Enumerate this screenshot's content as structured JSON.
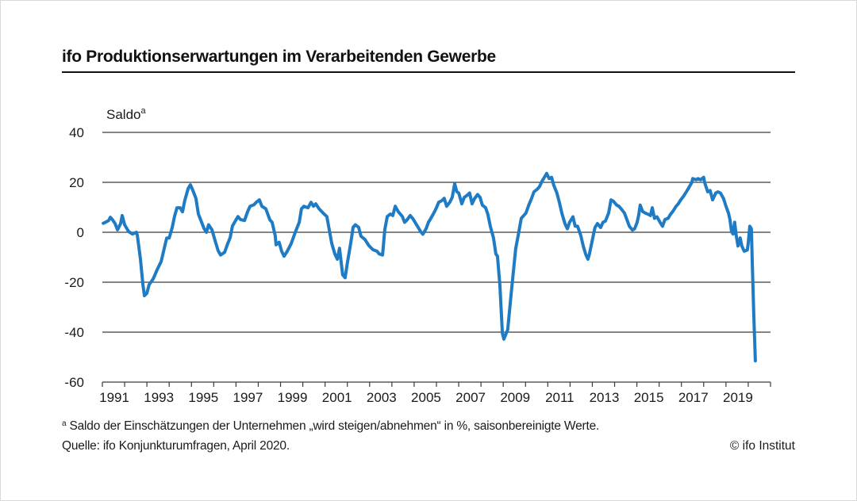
{
  "colors": {
    "line": "#1f7cc4",
    "grid": "#3a3a3a",
    "text": "#1a1a1a",
    "frame": "#d9d9d9"
  },
  "footnote": {
    "marker": "a",
    "text": "Saldo der Einschätzungen der Unternehmen „wird steigen/abnehmen“ in %, saisonbereinigte Werte."
  },
  "source": "Quelle: ifo Konjunkturumfragen, April 2020.",
  "copyright": "© ifo Institut",
  "chart_data": {
    "type": "line",
    "title": "ifo Produktionserwartungen im Verarbeitenden Gewerbe",
    "ylabel": "Saldo",
    "ylabel_superscript": "a",
    "xlabel": "",
    "ylim": [
      -60,
      40
    ],
    "xlim": [
      1991,
      2021
    ],
    "yticks": [
      40,
      20,
      0,
      -20,
      -40,
      -60
    ],
    "xticks": [
      "1991",
      "1993",
      "1995",
      "1997",
      "1999",
      "2001",
      "2003",
      "2005",
      "2007",
      "2009",
      "2011",
      "2013",
      "2015",
      "2017",
      "2019"
    ],
    "grid": "horizontal",
    "legend": "none",
    "series": [
      {
        "name": "ifo Produktionserwartungen (Saldo)",
        "points": [
          [
            1991.04,
            3.6
          ],
          [
            1991.14,
            4
          ],
          [
            1991.28,
            4.7
          ],
          [
            1991.36,
            6
          ],
          [
            1991.46,
            5
          ],
          [
            1991.57,
            3.5
          ],
          [
            1991.68,
            1
          ],
          [
            1991.82,
            3.5
          ],
          [
            1991.89,
            6.7
          ],
          [
            1992.0,
            3
          ],
          [
            1992.18,
            0.3
          ],
          [
            1992.35,
            -0.7
          ],
          [
            1992.53,
            0
          ],
          [
            1992.57,
            -1.3
          ],
          [
            1992.71,
            -10.8
          ],
          [
            1992.82,
            -21
          ],
          [
            1992.89,
            -25.4
          ],
          [
            1993.0,
            -24.4
          ],
          [
            1993.1,
            -21
          ],
          [
            1993.28,
            -18.7
          ],
          [
            1993.46,
            -15
          ],
          [
            1993.64,
            -11.7
          ],
          [
            1993.78,
            -6.4
          ],
          [
            1993.89,
            -2.3
          ],
          [
            1994.0,
            -2.3
          ],
          [
            1994.14,
            2
          ],
          [
            1994.24,
            6.3
          ],
          [
            1994.35,
            9.8
          ],
          [
            1994.49,
            9.8
          ],
          [
            1994.6,
            8.2
          ],
          [
            1994.7,
            12.7
          ],
          [
            1994.85,
            17.5
          ],
          [
            1994.95,
            19
          ],
          [
            1995.06,
            16.8
          ],
          [
            1995.2,
            13.6
          ],
          [
            1995.31,
            7.3
          ],
          [
            1995.42,
            4.8
          ],
          [
            1995.56,
            1.6
          ],
          [
            1995.67,
            0
          ],
          [
            1995.77,
            3
          ],
          [
            1995.92,
            1
          ],
          [
            1996.02,
            -2.1
          ],
          [
            1996.2,
            -7.4
          ],
          [
            1996.31,
            -9.1
          ],
          [
            1996.49,
            -8
          ],
          [
            1996.63,
            -4.5
          ],
          [
            1996.74,
            -2.1
          ],
          [
            1996.84,
            2.5
          ],
          [
            1996.99,
            4.8
          ],
          [
            1997.09,
            6.3
          ],
          [
            1997.2,
            5.1
          ],
          [
            1997.38,
            4.7
          ],
          [
            1997.52,
            8.2
          ],
          [
            1997.63,
            10.4
          ],
          [
            1997.8,
            11
          ],
          [
            1997.91,
            12
          ],
          [
            1998.05,
            13
          ],
          [
            1998.16,
            10.4
          ],
          [
            1998.34,
            9.4
          ],
          [
            1998.52,
            5
          ],
          [
            1998.62,
            4
          ],
          [
            1998.76,
            -1.3
          ],
          [
            1998.8,
            -5
          ],
          [
            1998.94,
            -4
          ],
          [
            1999.05,
            -7.6
          ],
          [
            1999.16,
            -9.6
          ],
          [
            1999.3,
            -7.6
          ],
          [
            1999.48,
            -4.5
          ],
          [
            1999.66,
            0
          ],
          [
            1999.84,
            4
          ],
          [
            1999.94,
            9.4
          ],
          [
            2000.05,
            10.4
          ],
          [
            2000.23,
            9.8
          ],
          [
            2000.37,
            12
          ],
          [
            2000.48,
            10.4
          ],
          [
            2000.58,
            11.4
          ],
          [
            2000.73,
            9.4
          ],
          [
            2000.9,
            7.8
          ],
          [
            2001.08,
            6.3
          ],
          [
            2001.19,
            0.9
          ],
          [
            2001.3,
            -4.5
          ],
          [
            2001.44,
            -8.7
          ],
          [
            2001.55,
            -10.8
          ],
          [
            2001.65,
            -6.4
          ],
          [
            2001.79,
            -17
          ],
          [
            2001.9,
            -18.2
          ],
          [
            2002.01,
            -11.8
          ],
          [
            2002.15,
            -4.5
          ],
          [
            2002.26,
            2
          ],
          [
            2002.36,
            3
          ],
          [
            2002.51,
            2
          ],
          [
            2002.61,
            -1.6
          ],
          [
            2002.79,
            -2.9
          ],
          [
            2002.97,
            -5.4
          ],
          [
            2003.15,
            -7
          ],
          [
            2003.33,
            -7.6
          ],
          [
            2003.43,
            -8.7
          ],
          [
            2003.58,
            -9.1
          ],
          [
            2003.68,
            1
          ],
          [
            2003.79,
            6.3
          ],
          [
            2003.93,
            7.3
          ],
          [
            2004.04,
            6.7
          ],
          [
            2004.15,
            10.4
          ],
          [
            2004.29,
            8.2
          ],
          [
            2004.47,
            6.3
          ],
          [
            2004.57,
            4
          ],
          [
            2004.68,
            5
          ],
          [
            2004.82,
            6.7
          ],
          [
            2004.93,
            5.6
          ],
          [
            2005.11,
            3
          ],
          [
            2005.29,
            0.3
          ],
          [
            2005.39,
            -0.8
          ],
          [
            2005.54,
            1.5
          ],
          [
            2005.64,
            4
          ],
          [
            2005.75,
            5.6
          ],
          [
            2005.89,
            7.8
          ],
          [
            2006.0,
            9.8
          ],
          [
            2006.1,
            12
          ],
          [
            2006.25,
            12.7
          ],
          [
            2006.35,
            13.6
          ],
          [
            2006.46,
            10.4
          ],
          [
            2006.6,
            12
          ],
          [
            2006.71,
            14
          ],
          [
            2006.82,
            19.4
          ],
          [
            2006.92,
            16.2
          ],
          [
            2007.0,
            15.7
          ],
          [
            2007.14,
            11.4
          ],
          [
            2007.25,
            14
          ],
          [
            2007.35,
            14.6
          ],
          [
            2007.49,
            15.7
          ],
          [
            2007.6,
            11.4
          ],
          [
            2007.71,
            13.5
          ],
          [
            2007.85,
            15.1
          ],
          [
            2007.96,
            14
          ],
          [
            2008.06,
            10.9
          ],
          [
            2008.21,
            9.8
          ],
          [
            2008.31,
            7.2
          ],
          [
            2008.42,
            2.4
          ],
          [
            2008.56,
            -2.3
          ],
          [
            2008.67,
            -8.7
          ],
          [
            2008.74,
            -9.6
          ],
          [
            2008.85,
            -21.3
          ],
          [
            2008.96,
            -40.4
          ],
          [
            2009.03,
            -42.8
          ],
          [
            2009.2,
            -39
          ],
          [
            2009.38,
            -22.3
          ],
          [
            2009.56,
            -6.5
          ],
          [
            2009.67,
            -1.3
          ],
          [
            2009.81,
            5.6
          ],
          [
            2009.92,
            6.7
          ],
          [
            2010.02,
            7.7
          ],
          [
            2010.17,
            11.4
          ],
          [
            2010.27,
            13.5
          ],
          [
            2010.38,
            16.2
          ],
          [
            2010.52,
            17.2
          ],
          [
            2010.63,
            18.3
          ],
          [
            2010.74,
            20.4
          ],
          [
            2010.88,
            22.5
          ],
          [
            2010.95,
            23.6
          ],
          [
            2011.06,
            21.5
          ],
          [
            2011.17,
            22
          ],
          [
            2011.27,
            18.8
          ],
          [
            2011.41,
            15.7
          ],
          [
            2011.52,
            12
          ],
          [
            2011.63,
            7.7
          ],
          [
            2011.77,
            3.5
          ],
          [
            2011.88,
            1.4
          ],
          [
            2011.98,
            4
          ],
          [
            2012.13,
            6.2
          ],
          [
            2012.23,
            2.4
          ],
          [
            2012.34,
            2.4
          ],
          [
            2012.48,
            -1.3
          ],
          [
            2012.59,
            -5.5
          ],
          [
            2012.7,
            -8.7
          ],
          [
            2012.8,
            -10.8
          ],
          [
            2012.87,
            -8.7
          ],
          [
            2013.02,
            -2.3
          ],
          [
            2013.12,
            1.9
          ],
          [
            2013.23,
            3.5
          ],
          [
            2013.37,
            1.9
          ],
          [
            2013.48,
            4
          ],
          [
            2013.59,
            4.5
          ],
          [
            2013.73,
            7.7
          ],
          [
            2013.84,
            13
          ],
          [
            2013.94,
            12.5
          ],
          [
            2014.09,
            10.9
          ],
          [
            2014.19,
            10.4
          ],
          [
            2014.3,
            9.3
          ],
          [
            2014.44,
            7.7
          ],
          [
            2014.55,
            5.1
          ],
          [
            2014.66,
            2.4
          ],
          [
            2014.8,
            0.9
          ],
          [
            2014.9,
            1.4
          ],
          [
            2015.01,
            4
          ],
          [
            2015.08,
            6.7
          ],
          [
            2015.15,
            10.9
          ],
          [
            2015.26,
            8.3
          ],
          [
            2015.37,
            7.7
          ],
          [
            2015.51,
            7.2
          ],
          [
            2015.61,
            6.7
          ],
          [
            2015.69,
            9.8
          ],
          [
            2015.79,
            5.6
          ],
          [
            2015.9,
            6.2
          ],
          [
            2016.04,
            4
          ],
          [
            2016.15,
            2.4
          ],
          [
            2016.26,
            5.1
          ],
          [
            2016.4,
            5.6
          ],
          [
            2016.51,
            7.2
          ],
          [
            2016.61,
            8.3
          ],
          [
            2016.76,
            10.4
          ],
          [
            2016.86,
            11.4
          ],
          [
            2016.97,
            13
          ],
          [
            2017.11,
            14.6
          ],
          [
            2017.22,
            16.2
          ],
          [
            2017.33,
            17.8
          ],
          [
            2017.47,
            20
          ],
          [
            2017.51,
            21.5
          ],
          [
            2017.65,
            21
          ],
          [
            2017.75,
            21.5
          ],
          [
            2017.86,
            21
          ],
          [
            2018.0,
            22
          ],
          [
            2018.04,
            20
          ],
          [
            2018.18,
            16.2
          ],
          [
            2018.29,
            16.7
          ],
          [
            2018.4,
            13
          ],
          [
            2018.54,
            15.7
          ],
          [
            2018.64,
            16.2
          ],
          [
            2018.75,
            15.7
          ],
          [
            2018.89,
            13.5
          ],
          [
            2019.0,
            10.4
          ],
          [
            2019.11,
            7.7
          ],
          [
            2019.18,
            5.1
          ],
          [
            2019.25,
            0.3
          ],
          [
            2019.32,
            -0.7
          ],
          [
            2019.39,
            4
          ],
          [
            2019.46,
            -1.3
          ],
          [
            2019.54,
            -5.5
          ],
          [
            2019.64,
            -2.3
          ],
          [
            2019.71,
            -5.5
          ],
          [
            2019.82,
            -7.6
          ],
          [
            2019.96,
            -7.1
          ],
          [
            2020.0,
            -4.4
          ],
          [
            2020.07,
            2.4
          ],
          [
            2020.14,
            1.4
          ],
          [
            2020.18,
            -11.8
          ],
          [
            2020.25,
            -32.9
          ],
          [
            2020.32,
            -51.5
          ]
        ]
      }
    ]
  }
}
